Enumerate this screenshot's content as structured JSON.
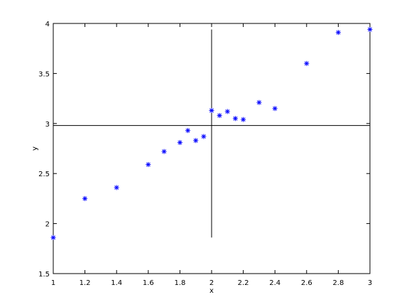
{
  "chart_data": {
    "type": "scatter",
    "title": "",
    "xlabel": "x",
    "ylabel": "y",
    "xlim": [
      1,
      3
    ],
    "ylim": [
      1.5,
      4
    ],
    "xticks": [
      "1",
      "1.2",
      "1.4",
      "1.6",
      "1.8",
      "2",
      "2.2",
      "2.4",
      "2.6",
      "2.8",
      "3"
    ],
    "yticks": [
      "1.5",
      "2",
      "2.5",
      "3",
      "3.5",
      "4"
    ],
    "grid": false,
    "marker": "*",
    "marker_color": "#0000ff",
    "x": [
      1.0,
      1.2,
      1.4,
      1.6,
      1.7,
      1.8,
      1.85,
      1.9,
      1.95,
      2.0,
      2.05,
      2.1,
      2.15,
      2.2,
      2.3,
      2.4,
      2.6,
      2.8,
      3.0
    ],
    "y": [
      1.86,
      2.25,
      2.36,
      2.59,
      2.72,
      2.81,
      2.93,
      2.83,
      2.87,
      3.13,
      3.08,
      3.12,
      3.05,
      3.04,
      3.21,
      3.15,
      3.6,
      3.91,
      3.94
    ],
    "reference_lines": {
      "vertical": {
        "x": 2.0,
        "y_range": [
          1.86,
          3.94
        ]
      },
      "horizontal": {
        "y": 2.98,
        "x_range": [
          1,
          3
        ]
      },
      "color": "#000000"
    }
  }
}
